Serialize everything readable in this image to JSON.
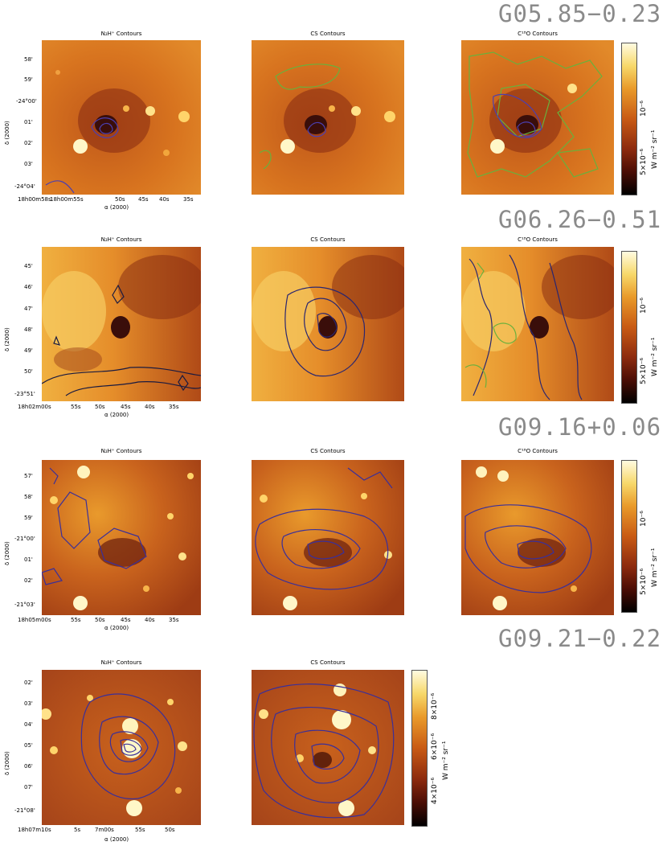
{
  "rows": [
    {
      "source": "G05.85−0.23",
      "titles": [
        "N₂H⁺ Contours",
        "CS Contours",
        "C¹⁸O Contours"
      ],
      "yticks": [
        "58'",
        "59'",
        "-24°00'",
        "01'",
        "02'",
        "03'",
        "-24°04'"
      ],
      "xticks": [
        "18h00m58s",
        "18h00m55s",
        "50s",
        "45s",
        "40s",
        "35s"
      ],
      "ylabel": "δ (2000)",
      "xlabel": "α (2000)",
      "cbar_labels": [
        "10⁻⁶",
        "5×10⁻⁶",
        "W m⁻² sr⁻¹"
      ]
    },
    {
      "source": "G06.26−0.51",
      "titles": [
        "N₂H⁺ Contours",
        "CS Contours",
        "C¹⁸O Contours"
      ],
      "yticks": [
        "45'",
        "46'",
        "47'",
        "48'",
        "49'",
        "50'",
        "-23°51'"
      ],
      "xticks": [
        "18h02m00s",
        "55s",
        "50s",
        "45s",
        "40s",
        "35s"
      ],
      "ylabel": "δ (2000)",
      "xlabel": "α (2000)",
      "cbar_labels": [
        "10⁻⁶",
        "5×10⁻⁶",
        "W m⁻² sr⁻¹"
      ]
    },
    {
      "source": "G09.16+0.06",
      "titles": [
        "N₂H⁺ Contours",
        "CS Contours",
        "C¹⁸O Contours"
      ],
      "yticks": [
        "57'",
        "58'",
        "59'",
        "-21°00'",
        "01'",
        "02'",
        "-21°03'"
      ],
      "xticks": [
        "18h05m00s",
        "55s",
        "50s",
        "45s",
        "40s",
        "35s"
      ],
      "ylabel": "δ (2000)",
      "xlabel": "α (2000)",
      "cbar_labels": [
        "10⁻⁶",
        "5×10⁻⁶",
        "W m⁻² sr⁻¹"
      ]
    },
    {
      "source": "G09.21−0.22",
      "titles": [
        "N₂H⁺ Contours",
        "CS Contours"
      ],
      "yticks": [
        "02'",
        "03'",
        "04'",
        "05'",
        "06'",
        "07'",
        "-21°08'"
      ],
      "xticks": [
        "18h07m10s",
        "5s",
        "7m00s",
        "55s",
        "50s"
      ],
      "ylabel": "δ (2000)",
      "xlabel": "α (2000)",
      "cbar_labels": [
        "4×10⁻⁶",
        "6×10⁻⁶",
        "8×10⁻⁶",
        "W m⁻² sr⁻¹"
      ]
    }
  ]
}
